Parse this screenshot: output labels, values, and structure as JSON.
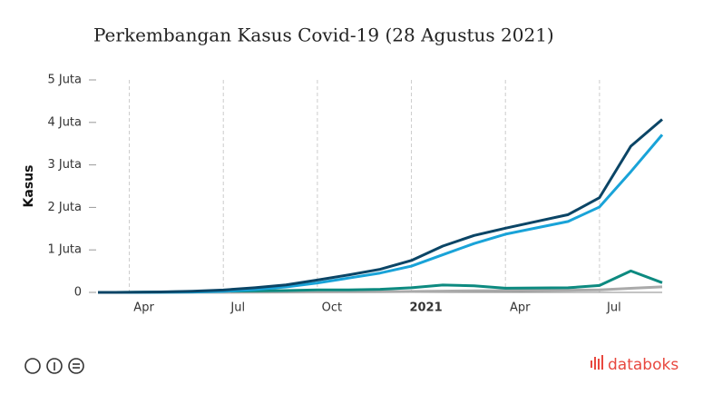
{
  "chart_data": {
    "type": "line",
    "title": "Perkembangan Kasus Covid-19 (28 Agustus 2021)",
    "y_label": "Kasus",
    "categories": [
      null,
      "Apr",
      null,
      null,
      "Jul",
      null,
      null,
      "Oct",
      null,
      null,
      "2021",
      null,
      null,
      "Apr",
      null,
      null,
      "Jul",
      null,
      null
    ],
    "series": [
      {
        "color": "#0b4566",
        "values": [
          0,
          1700,
          10000,
          27000,
          57000,
          109000,
          177000,
          292000,
          411000,
          544000,
          751000,
          1090000,
          1340000,
          1510000,
          1670000,
          1830000,
          2230000,
          3440000,
          4070000
        ]
      },
      {
        "color": "#19a3d8",
        "values": [
          0,
          100,
          1600,
          7900,
          25000,
          68000,
          128000,
          221000,
          338000,
          455000,
          619000,
          886000,
          1150000,
          1370000,
          1520000,
          1670000,
          2010000,
          2840000,
          3710000
        ]
      },
      {
        "color": "#0d8a80",
        "values": [
          0,
          1400,
          7600,
          17500,
          29000,
          36000,
          41500,
          60000,
          59000,
          72000,
          110000,
          174000,
          154000,
          99000,
          104000,
          109000,
          162000,
          505000,
          229000
        ]
      },
      {
        "color": "#aaaaaa",
        "values": [
          0,
          157,
          792,
          1600,
          2900,
          5200,
          7500,
          10900,
          13900,
          17000,
          22300,
          30000,
          36300,
          41000,
          45900,
          51000,
          58000,
          95000,
          131000
        ]
      }
    ],
    "ylim": [
      0,
      5000000
    ],
    "yticks": [
      0,
      {
        "value": 1000000,
        "label": "1 Juta"
      },
      {
        "value": 2000000,
        "label": "2 Juta"
      },
      {
        "value": 3000000,
        "label": "3 Juta"
      },
      {
        "value": 4000000,
        "label": "4 Juta"
      },
      {
        "value": 5000000,
        "label": "5 Juta"
      }
    ],
    "grid": "x",
    "bold_category": "2021",
    "brand": "databoks"
  }
}
